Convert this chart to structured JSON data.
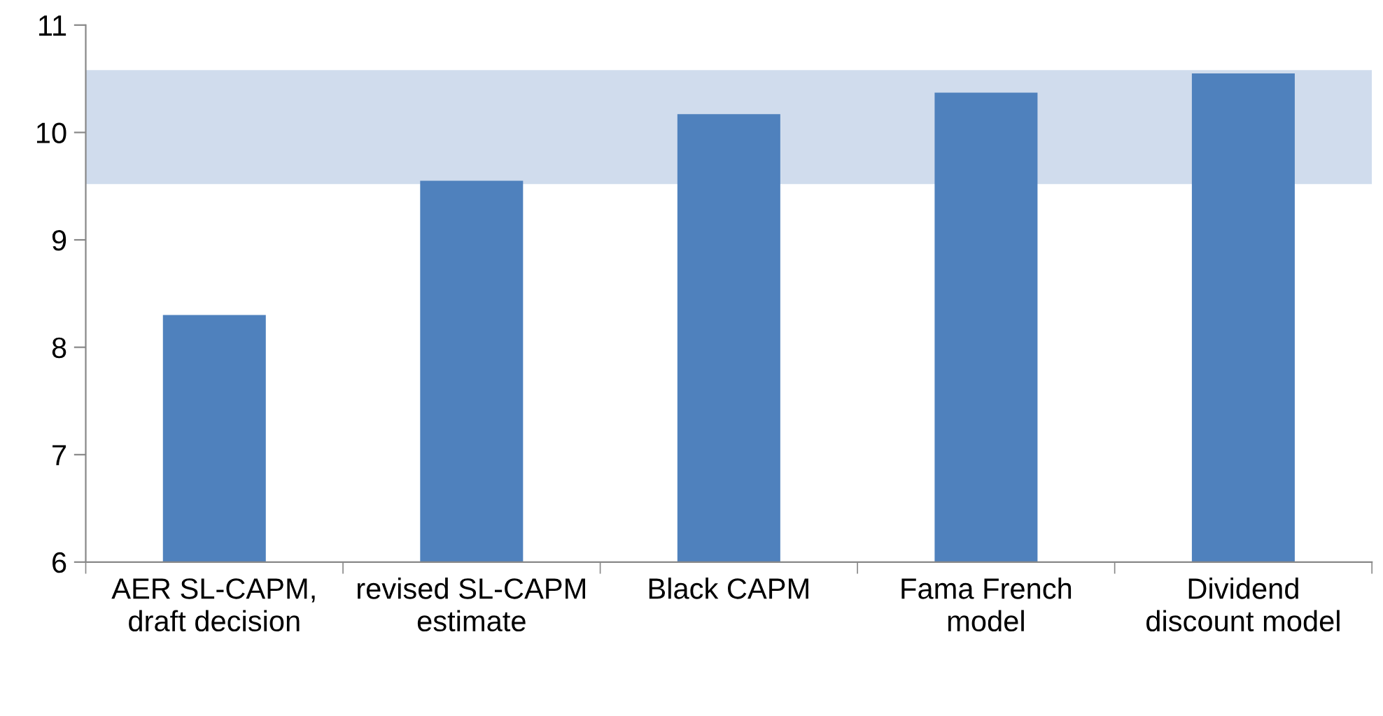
{
  "chart_data": {
    "type": "bar",
    "categories": [
      "AER SL-CAPM,\ndraft decision",
      "revised SL-CAPM\nestimate",
      "Black CAPM",
      "Fama French\nmodel",
      "Dividend\ndiscount model"
    ],
    "values": [
      8.3,
      9.55,
      10.17,
      10.37,
      10.55
    ],
    "color": "#4f81bd",
    "ylim": [
      6,
      11
    ],
    "yticks": [
      6,
      7,
      8,
      9,
      10,
      11
    ],
    "bands": [
      {
        "axis": "y",
        "from": 9.52,
        "to": 10.58,
        "color": "#d0dced"
      }
    ]
  }
}
